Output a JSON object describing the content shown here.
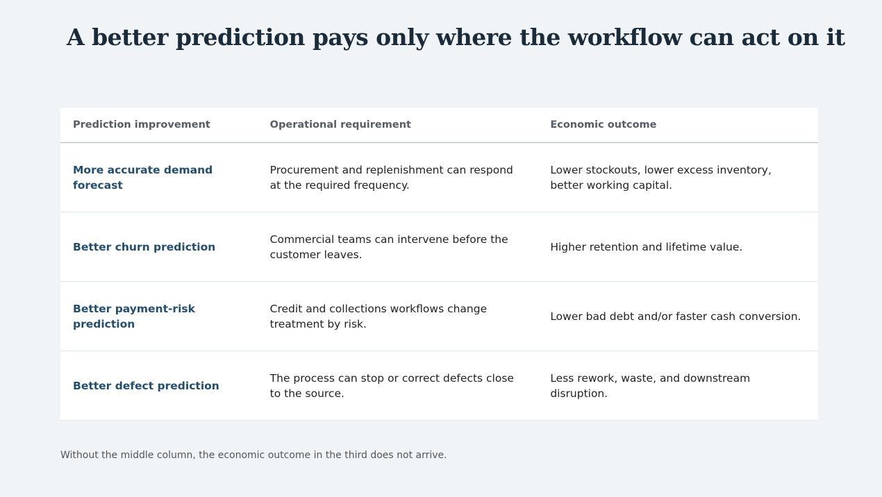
{
  "title": "A better prediction pays only where the workflow can act on it",
  "table": {
    "header": [
      "Prediction improvement",
      "Operational requirement",
      "Economic outcome"
    ],
    "rows": [
      [
        "More accurate demand forecast",
        "Procurement and replenishment can respond at the required frequency.",
        "Lower stockouts, lower excess inventory, better working capital."
      ],
      [
        "Better churn prediction",
        "Commercial teams can intervene before the customer leaves.",
        "Higher retention and lifetime value."
      ],
      [
        "Better payment-risk prediction",
        "Credit and collections workflows change treatment by risk.",
        "Lower bad debt and/or faster cash conversion."
      ],
      [
        "Better defect prediction",
        "The process can stop or correct defects close to the source.",
        "Less rework, waste, and downstream disruption."
      ]
    ]
  },
  "footnote": "Without the middle column, the economic outcome in the third does not arrive."
}
